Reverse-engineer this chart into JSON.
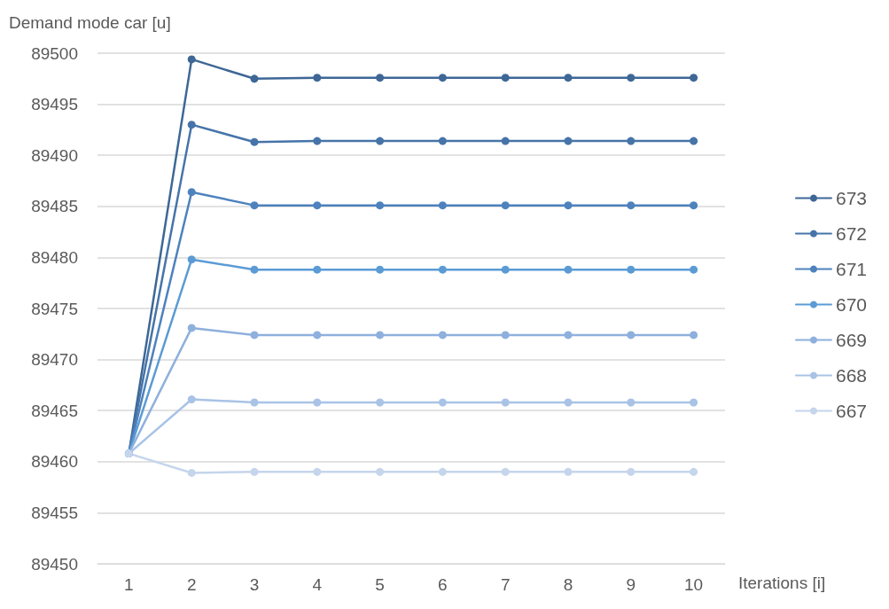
{
  "chart_data": {
    "type": "line",
    "ylabel": "Demand mode car [u]",
    "xlabel": "Iterations [i]",
    "categories": [
      "1",
      "2",
      "3",
      "4",
      "5",
      "6",
      "7",
      "8",
      "9",
      "10"
    ],
    "ylim": [
      89450,
      89500
    ],
    "yticks": [
      89450,
      89455,
      89460,
      89465,
      89470,
      89475,
      89480,
      89485,
      89490,
      89495,
      89500
    ],
    "grid": "y",
    "legend": "right",
    "marker": "circle",
    "line_style": "solid",
    "series": [
      {
        "name": "673",
        "color": "#3e6796",
        "values": [
          89460.8,
          89499.4,
          89497.5,
          89497.6,
          89497.6,
          89497.6,
          89497.6,
          89497.6,
          89497.6,
          89497.6
        ]
      },
      {
        "name": "672",
        "color": "#4674a8",
        "values": [
          89460.8,
          89493.0,
          89491.3,
          89491.4,
          89491.4,
          89491.4,
          89491.4,
          89491.4,
          89491.4,
          89491.4
        ]
      },
      {
        "name": "671",
        "color": "#4d82bd",
        "values": [
          89460.8,
          89486.4,
          89485.1,
          89485.1,
          89485.1,
          89485.1,
          89485.1,
          89485.1,
          89485.1,
          89485.1
        ]
      },
      {
        "name": "670",
        "color": "#5b9bd5",
        "values": [
          89460.8,
          89479.8,
          89478.8,
          89478.8,
          89478.8,
          89478.8,
          89478.8,
          89478.8,
          89478.8,
          89478.8
        ]
      },
      {
        "name": "669",
        "color": "#8eb0dd",
        "values": [
          89460.8,
          89473.1,
          89472.4,
          89472.4,
          89472.4,
          89472.4,
          89472.4,
          89472.4,
          89472.4,
          89472.4
        ]
      },
      {
        "name": "668",
        "color": "#a9c3e6",
        "values": [
          89460.8,
          89466.1,
          89465.8,
          89465.8,
          89465.8,
          89465.8,
          89465.8,
          89465.8,
          89465.8,
          89465.8
        ]
      },
      {
        "name": "667",
        "color": "#c5d5ec",
        "values": [
          89460.8,
          89458.9,
          89459.0,
          89459.0,
          89459.0,
          89459.0,
          89459.0,
          89459.0,
          89459.0,
          89459.0
        ]
      }
    ]
  }
}
